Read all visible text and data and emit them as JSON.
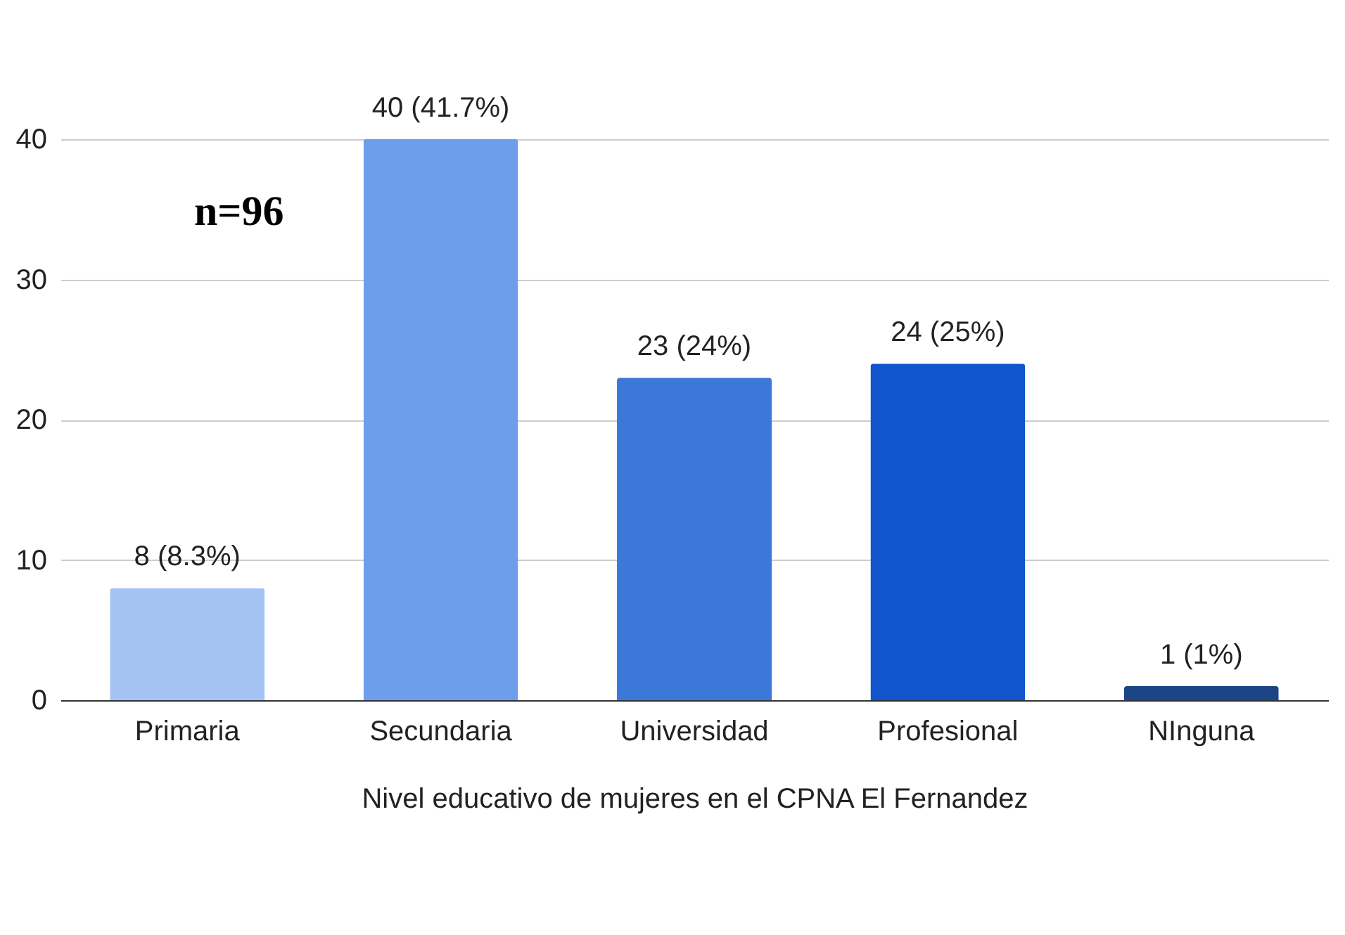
{
  "chart_data": {
    "type": "bar",
    "xlabel": "Nivel educativo de mujeres en el CPNA El Fernandez",
    "categories": [
      "Primaria",
      "Secundaria",
      "Universidad",
      "Profesional",
      "NInguna"
    ],
    "values": [
      8,
      40,
      23,
      24,
      1
    ],
    "colors": [
      "#a4c2f4",
      "#6d9eeb",
      "#3c78d8",
      "#1155cc",
      "#1c4587"
    ],
    "value_labels": [
      "8 (8.3%)",
      "40 (41.7%)",
      "23 (24%)",
      "24 (25%)",
      "1 (1%)"
    ],
    "annotations": [
      "n=96"
    ],
    "ylim": [
      0,
      40
    ],
    "yticks": [
      0,
      10,
      20,
      30,
      40
    ],
    "grid": "y"
  }
}
